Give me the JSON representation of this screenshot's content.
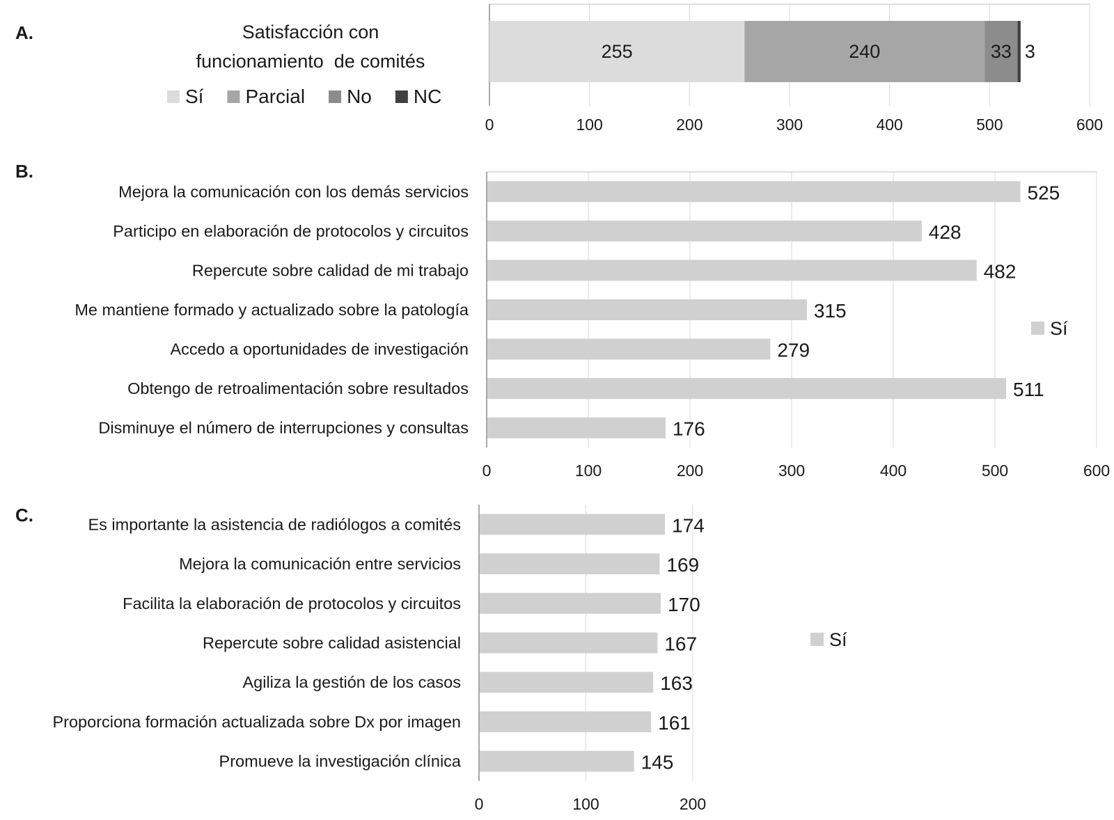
{
  "chart_data": [
    {
      "panel_label": "A.",
      "type": "bar",
      "stacked": true,
      "orientation": "horizontal",
      "title": "Satisfacción con funcionamiento de comités",
      "title_lines": [
        "Satisfacción con",
        "funcionamiento  de comités"
      ],
      "categories": [
        ""
      ],
      "series": [
        {
          "name": "Sí",
          "values": [
            255
          ],
          "label": "255",
          "color": "#dcdcdc"
        },
        {
          "name": "Parcial",
          "values": [
            240
          ],
          "label": "240",
          "color": "#a6a6a6"
        },
        {
          "name": "No",
          "values": [
            33
          ],
          "label": "33",
          "color": "#8c8c8c"
        },
        {
          "name": "NC",
          "values": [
            3
          ],
          "label": "3",
          "color": "#404040"
        }
      ],
      "xlim": [
        0,
        600
      ],
      "xticks": [
        "0",
        "100",
        "200",
        "300",
        "400",
        "500",
        "600"
      ],
      "grid": true,
      "legend_position": "left"
    },
    {
      "panel_label": "B.",
      "type": "bar",
      "orientation": "horizontal",
      "categories": [
        "Mejora la comunicación con los demás servicios",
        "Participo en elaboración de protocolos y circuitos",
        "Repercute sobre calidad de mi trabajo",
        "Me mantiene formado y actualizado sobre la patología",
        "Accedo a oportunidades de investigación",
        "Obtengo de retroalimentación sobre resultados",
        "Disminuye el número  de interrupciones y consultas"
      ],
      "series": [
        {
          "name": "Sí",
          "values": [
            525,
            428,
            482,
            315,
            279,
            511,
            176
          ],
          "color": "#d0d0d0"
        }
      ],
      "value_labels": [
        "525",
        "428",
        "482",
        "315",
        "279",
        "511",
        "176"
      ],
      "xlim": [
        0,
        600
      ],
      "xticks": [
        "0",
        "100",
        "200",
        "300",
        "400",
        "500",
        "600"
      ],
      "grid": true,
      "legend_position": "right"
    },
    {
      "panel_label": "C.",
      "type": "bar",
      "orientation": "horizontal",
      "categories": [
        "Es importante la asistencia de radiólogos a comités",
        "Mejora la comunicación entre servicios",
        "Facilita la elaboración de protocolos y circuitos",
        "Repercute sobre calidad asistencial",
        "Agiliza la gestión de los casos",
        "Proporciona formación actualizada sobre Dx por imagen",
        "Promueve la investigación clínica"
      ],
      "series": [
        {
          "name": "Sí",
          "values": [
            174,
            169,
            170,
            167,
            163,
            161,
            145
          ],
          "color": "#d0d0d0"
        }
      ],
      "value_labels": [
        "174",
        "169",
        "170",
        "167",
        "163",
        "161",
        "145"
      ],
      "xlim": [
        0,
        200
      ],
      "xticks": [
        "0",
        "100",
        "200"
      ],
      "grid": true,
      "legend_position": "right"
    }
  ]
}
